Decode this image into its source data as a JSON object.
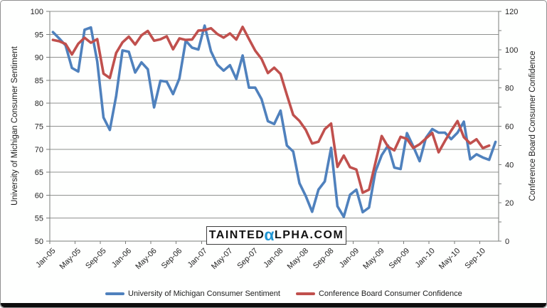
{
  "page": {
    "background": "#ffffff",
    "border_color": "#8f8f8f",
    "bottom_bar_color": "#0d0d0d"
  },
  "watermark": {
    "pre": "Tainted",
    "alpha": "α",
    "post": "lpha.com",
    "alpha_color": "#2196d3",
    "text_color": "#111111"
  },
  "chart_data": {
    "type": "line",
    "title": "",
    "frequency": "monthly",
    "x_range": {
      "start": "Jan-05",
      "end": "Nov-10"
    },
    "x_tick_labels": [
      "Jan-05",
      "May-05",
      "Sep-05",
      "Jan-06",
      "May-06",
      "Sep-06",
      "Jan-07",
      "May-07",
      "Sep-07",
      "Jan-08",
      "May-08",
      "Sep-08",
      "Jan-09",
      "May-09",
      "Sep-09",
      "Jan-10",
      "May-10",
      "Sep-10"
    ],
    "left_axis": {
      "title": "University of Michigan Consumer Sentiment",
      "min": 50,
      "max": 100,
      "tick_interval": 5,
      "ticks": [
        100,
        95,
        90,
        85,
        80,
        75,
        70,
        65,
        60,
        55,
        50
      ]
    },
    "right_axis": {
      "title": "Conference Board Consumer Confidence",
      "min": 0,
      "max": 120,
      "tick_interval": 20,
      "minor_tick_interval": 10,
      "ticks": [
        120,
        100,
        80,
        60,
        40,
        20,
        0
      ]
    },
    "grid": true,
    "legend_position": "bottom",
    "series": [
      {
        "name": "University of Michigan Consumer Sentiment",
        "axis": "left",
        "color": "#4f81bd",
        "values": [
          95.5,
          94.1,
          92.6,
          87.7,
          86.9,
          96.0,
          96.5,
          89.1,
          76.9,
          74.2,
          81.6,
          91.5,
          91.2,
          86.7,
          88.9,
          87.4,
          79.1,
          84.9,
          84.7,
          82.0,
          85.4,
          93.6,
          92.1,
          91.7,
          96.9,
          91.3,
          88.4,
          87.1,
          88.3,
          85.3,
          90.4,
          83.4,
          83.4,
          80.9,
          76.1,
          75.5,
          78.4,
          70.8,
          69.5,
          62.6,
          59.8,
          56.4,
          61.2,
          63.0,
          70.3,
          57.6,
          55.3,
          60.1,
          61.2,
          56.3,
          57.3,
          65.1,
          68.7,
          70.8,
          66.0,
          65.7,
          73.5,
          70.6,
          67.4,
          72.5,
          74.4,
          73.6,
          73.6,
          72.2,
          73.6,
          76.0,
          67.8,
          68.9,
          68.2,
          67.7,
          71.6
        ]
      },
      {
        "name": "Conference Board Consumer Confidence",
        "axis": "right",
        "color": "#c0504d",
        "values": [
          105.1,
          104.4,
          103.0,
          97.5,
          103.1,
          106.2,
          103.6,
          105.5,
          87.5,
          85.2,
          98.3,
          103.8,
          106.8,
          102.7,
          107.5,
          109.8,
          104.7,
          105.4,
          107.0,
          100.2,
          105.9,
          105.1,
          105.3,
          110.0,
          110.2,
          111.2,
          108.2,
          106.3,
          108.5,
          105.3,
          111.9,
          105.6,
          99.5,
          95.2,
          87.8,
          90.6,
          87.3,
          76.4,
          65.9,
          62.8,
          58.1,
          51.0,
          51.9,
          58.5,
          61.4,
          38.8,
          44.7,
          38.6,
          37.4,
          25.3,
          26.9,
          40.8,
          54.9,
          49.3,
          47.4,
          54.5,
          53.4,
          48.7,
          50.6,
          53.6,
          56.5,
          46.4,
          52.3,
          57.7,
          62.7,
          54.3,
          51.0,
          53.2,
          48.6,
          49.9
        ]
      }
    ]
  }
}
